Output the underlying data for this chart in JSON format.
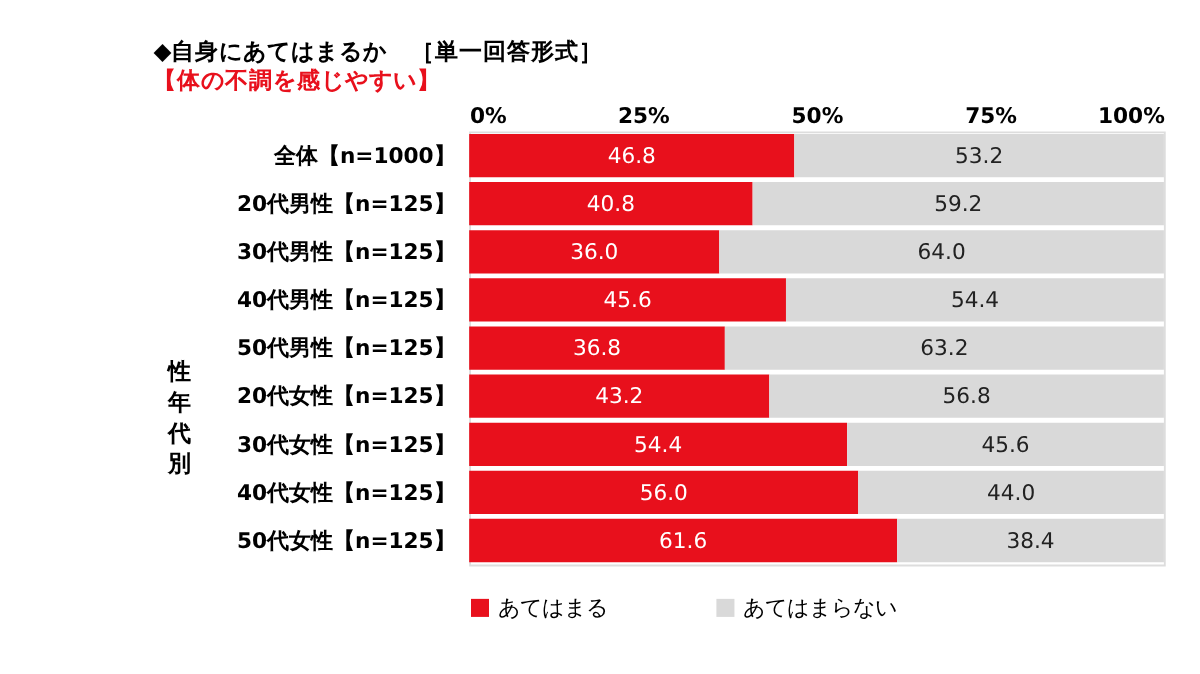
{
  "chart_data": {
    "type": "bar",
    "orientation": "horizontal",
    "stacked": true,
    "title": "◆自身にあてはまるか　［単一回答形式］",
    "subtitle": "【体の不調を感じやすい】",
    "categories": [
      "全体【n=1000】",
      "20代男性【n=125】",
      "30代男性【n=125】",
      "40代男性【n=125】",
      "50代男性【n=125】",
      "20代女性【n=125】",
      "30代女性【n=125】",
      "40代女性【n=125】",
      "50代女性【n=125】"
    ],
    "series": [
      {
        "name": "あてはまる",
        "color": "#e8101c",
        "values": [
          46.8,
          40.8,
          36.0,
          45.6,
          36.8,
          43.2,
          54.4,
          56.0,
          61.6
        ],
        "value_labels": [
          "46.8",
          "40.8",
          "36.0",
          "45.6",
          "36.8",
          "43.2",
          "54.4",
          "56.0",
          "61.6"
        ]
      },
      {
        "name": "あてはまらない",
        "color": "#d9d9d9",
        "values": [
          53.2,
          59.2,
          64.0,
          54.4,
          63.2,
          56.8,
          45.6,
          44.0,
          38.4
        ],
        "value_labels": [
          "53.2",
          "59.2",
          "64.0",
          "54.4",
          "63.2",
          "56.8",
          "45.6",
          "44.0",
          "38.4"
        ]
      }
    ],
    "xlim": [
      0,
      100
    ],
    "xticks": [
      {
        "value": 0,
        "label": "0%"
      },
      {
        "value": 25,
        "label": "25%"
      },
      {
        "value": 50,
        "label": "50%"
      },
      {
        "value": 75,
        "label": "75%"
      },
      {
        "value": 100,
        "label": "100%"
      }
    ],
    "legend": "bottom",
    "grid": false,
    "annotations": [
      "性年代別"
    ]
  }
}
